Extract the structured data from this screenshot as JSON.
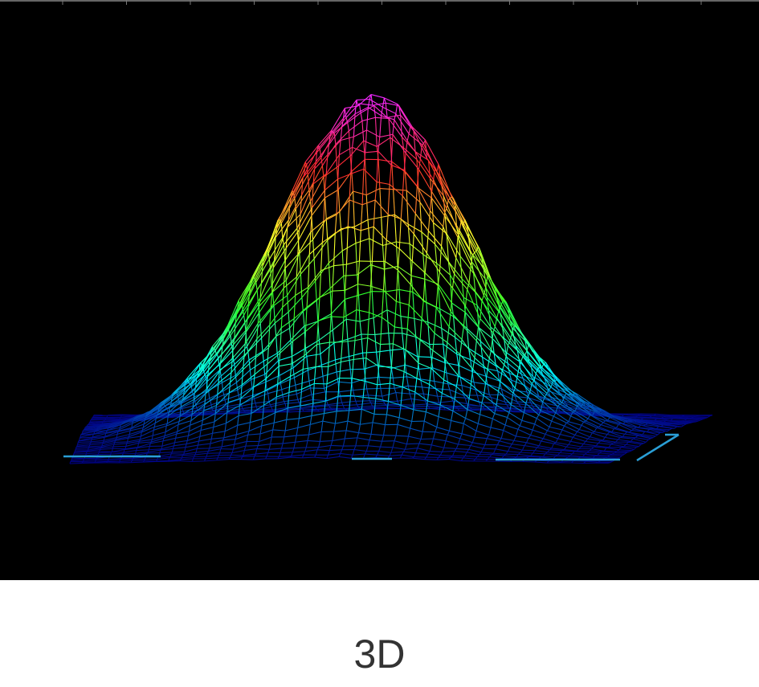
{
  "figure": {
    "caption": "3D",
    "background_color": "#000000",
    "baseline_color": "#2a9fd6",
    "colormap": [
      "#1a1aff",
      "#00e5ff",
      "#7fff00",
      "#ffff00",
      "#ff2a6a",
      "#ff00ff"
    ],
    "plot_type": "3d wireframe surface, single central peak"
  }
}
